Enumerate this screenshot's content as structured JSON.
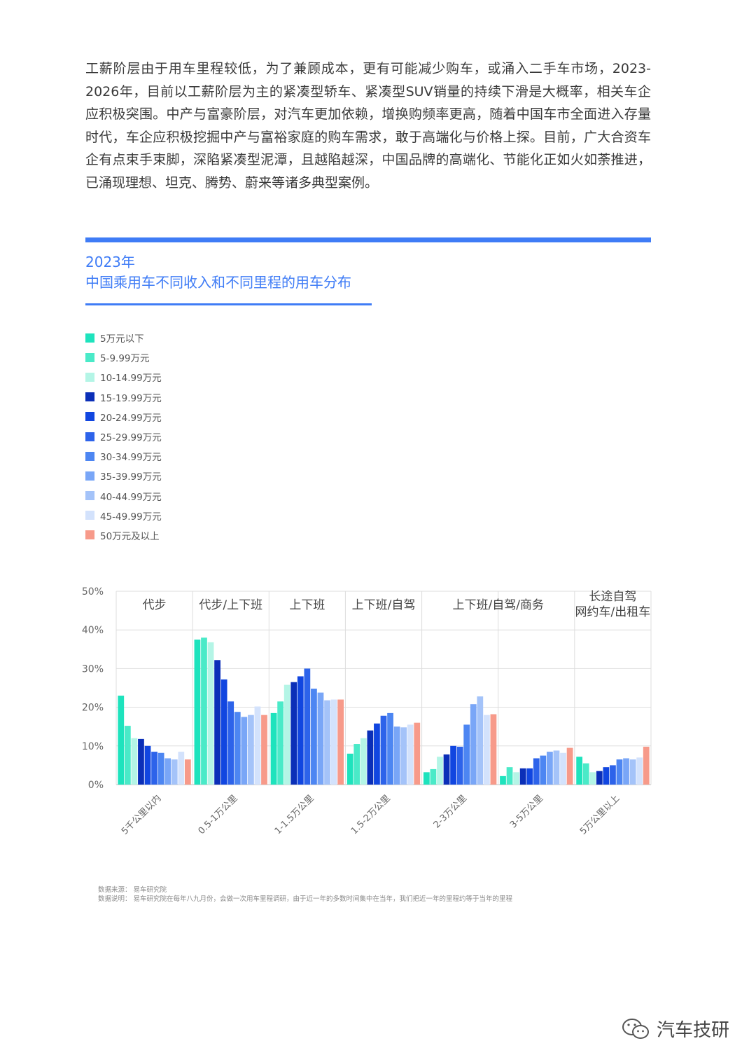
{
  "intro_text": "工薪阶层由于用车里程较低，为了兼顾成本，更有可能减少购车，或涌入二手车市场，2023-2026年，目前以工薪阶层为主的紧凑型轿车、紧凑型SUV销量的持续下滑是大概率，相关车企应积极突围。中产与富豪阶层，对汽车更加依赖，增换购频率更高，随着中国车市全面进入存量时代，车企应积极挖掘中产与富裕家庭的购车需求，敢于高端化与价格上探。目前，广大合资车企有点束手束脚，深陷紧凑型泥潭，且越陷越深，中国品牌的高端化、节能化正如火如荼推进，已涌现理想、坦克、腾势、蔚来等诸多典型案例。",
  "chart_title": {
    "year": "2023年",
    "main": "中国乘用车不同收入和不同里程的用车分布"
  },
  "chart_data": {
    "type": "bar",
    "categories": [
      "5千公里以内",
      "0.5-1万公里",
      "1-1.5万公里",
      "1.5-2万公里",
      "2-3万公里",
      "3-5万公里",
      "5万公里以上"
    ],
    "usage_labels": [
      [
        "代步"
      ],
      [
        "代步/上下班"
      ],
      [
        "上下班"
      ],
      [
        "上下班/自驾"
      ],
      [
        "上下班/自驾/商务"
      ],
      [
        ""
      ],
      [
        "长途自驾",
        "网约车/出租车"
      ]
    ],
    "usage_label_layout": [
      {
        "from": 0,
        "to": 0
      },
      {
        "from": 1,
        "to": 1
      },
      {
        "from": 2,
        "to": 2
      },
      {
        "from": 3,
        "to": 3
      },
      {
        "from": 4,
        "to": 5
      },
      {
        "from": 6,
        "to": 6
      }
    ],
    "y_ticks": [
      "0%",
      "10%",
      "20%",
      "30%",
      "40%",
      "50%"
    ],
    "ylim": [
      0,
      50
    ],
    "grid": true,
    "series": [
      {
        "name": "5万元以下",
        "color": "#1ee3bd",
        "values": [
          23,
          37.5,
          18.5,
          8,
          3.2,
          2.2,
          7.2
        ]
      },
      {
        "name": "5-9.99万元",
        "color": "#4aeac8",
        "values": [
          15.2,
          38,
          21.5,
          10.5,
          4,
          4.5,
          5.5
        ]
      },
      {
        "name": "10-14.99万元",
        "color": "#b4f5e6",
        "values": [
          12,
          36.8,
          25.8,
          12,
          7.2,
          3.2,
          3.2
        ]
      },
      {
        "name": "15-19.99万元",
        "color": "#0b2fb8",
        "values": [
          11.8,
          32.2,
          26.5,
          14,
          7.8,
          4.2,
          3.5
        ]
      },
      {
        "name": "20-24.99万元",
        "color": "#1146e0",
        "values": [
          10,
          27.2,
          28,
          15.8,
          10,
          4.2,
          4.5
        ]
      },
      {
        "name": "25-29.99万元",
        "color": "#2d63ea",
        "values": [
          8.5,
          21.5,
          30,
          17.8,
          9.8,
          6.8,
          5
        ]
      },
      {
        "name": "30-34.99万元",
        "color": "#4d86f2",
        "values": [
          8.2,
          18.8,
          24.8,
          18.5,
          15.5,
          7.5,
          6.5
        ]
      },
      {
        "name": "35-39.99万元",
        "color": "#79a6f7",
        "values": [
          6.8,
          17.5,
          23.8,
          15,
          20.8,
          8.5,
          6.8
        ]
      },
      {
        "name": "40-44.99万元",
        "color": "#a4c3f9",
        "values": [
          6.5,
          18,
          21.8,
          14.8,
          22.8,
          8.8,
          6.5
        ]
      },
      {
        "name": "45-49.99万元",
        "color": "#d3e2fc",
        "values": [
          8.5,
          20.2,
          22,
          15.5,
          18,
          8.2,
          7
        ]
      },
      {
        "name": "50万元及以上",
        "color": "#f79a8a",
        "values": [
          6.5,
          18,
          22,
          16,
          18.2,
          9.5,
          9.8
        ]
      }
    ]
  },
  "footnotes": {
    "source": "数据来源：  易车研究院",
    "note": "数据说明：  易车研究院在每年八九月份，会做一次用车里程调研，由于近一年的多数时间集中在当年，我们把近一年的里程约等于当年的里程"
  },
  "brand": {
    "name": "汽车技研",
    "icon": "wechat-icon"
  }
}
